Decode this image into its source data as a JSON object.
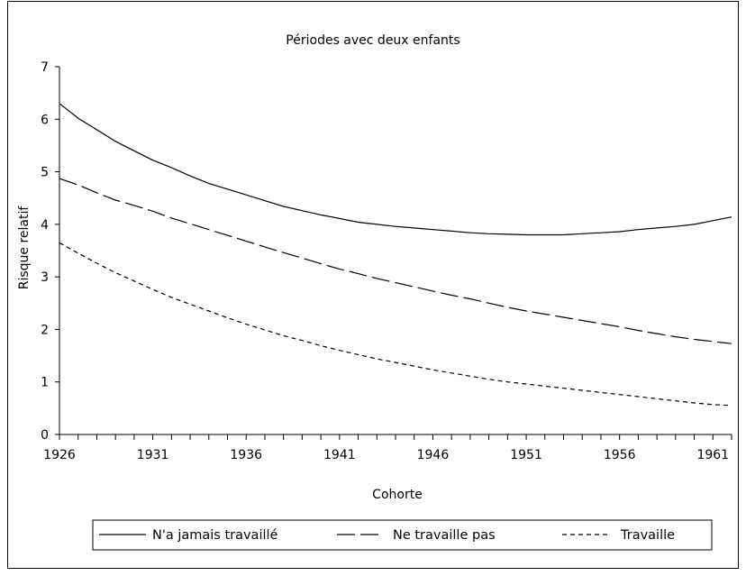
{
  "chart_data": {
    "type": "line",
    "title": "Périodes avec deux enfants",
    "xlabel": "Cohorte",
    "ylabel": "Risque relatif",
    "xlim": [
      1926,
      1962
    ],
    "ylim": [
      0,
      7
    ],
    "x_ticks": [
      "1926",
      "1931",
      "1936",
      "1941",
      "1946",
      "1951",
      "1956",
      "1961"
    ],
    "y_ticks": [
      "0",
      "1",
      "2",
      "3",
      "4",
      "5",
      "6",
      "7"
    ],
    "x": [
      1926,
      1927,
      1928,
      1929,
      1930,
      1931,
      1932,
      1933,
      1934,
      1935,
      1936,
      1937,
      1938,
      1939,
      1940,
      1941,
      1942,
      1943,
      1944,
      1945,
      1946,
      1947,
      1948,
      1949,
      1950,
      1951,
      1952,
      1953,
      1954,
      1955,
      1956,
      1957,
      1958,
      1959,
      1960,
      1961,
      1962
    ],
    "series": [
      {
        "name": "N'a jamais travaillé",
        "style": "solid",
        "values": [
          6.3,
          6.02,
          5.8,
          5.58,
          5.4,
          5.22,
          5.08,
          4.92,
          4.78,
          4.67,
          4.56,
          4.45,
          4.34,
          4.26,
          4.18,
          4.11,
          4.04,
          4.0,
          3.96,
          3.93,
          3.9,
          3.87,
          3.84,
          3.82,
          3.81,
          3.8,
          3.8,
          3.8,
          3.82,
          3.84,
          3.86,
          3.9,
          3.93,
          3.96,
          4.0,
          4.07,
          4.14
        ]
      },
      {
        "name": "Ne travaille pas",
        "style": "dashed",
        "values": [
          4.87,
          4.75,
          4.6,
          4.46,
          4.36,
          4.25,
          4.12,
          4.01,
          3.9,
          3.79,
          3.68,
          3.57,
          3.46,
          3.36,
          3.25,
          3.15,
          3.06,
          2.97,
          2.89,
          2.81,
          2.73,
          2.65,
          2.58,
          2.5,
          2.42,
          2.35,
          2.29,
          2.23,
          2.17,
          2.11,
          2.05,
          1.98,
          1.92,
          1.86,
          1.81,
          1.77,
          1.73
        ]
      },
      {
        "name": "Travaille",
        "style": "dotted",
        "values": [
          3.65,
          3.45,
          3.26,
          3.08,
          2.92,
          2.76,
          2.61,
          2.48,
          2.35,
          2.22,
          2.1,
          1.99,
          1.88,
          1.79,
          1.69,
          1.6,
          1.52,
          1.44,
          1.37,
          1.3,
          1.23,
          1.17,
          1.11,
          1.05,
          1.0,
          0.96,
          0.92,
          0.88,
          0.84,
          0.8,
          0.76,
          0.72,
          0.68,
          0.64,
          0.6,
          0.57,
          0.55
        ]
      }
    ],
    "grid": false,
    "legend_position": "bottom"
  }
}
